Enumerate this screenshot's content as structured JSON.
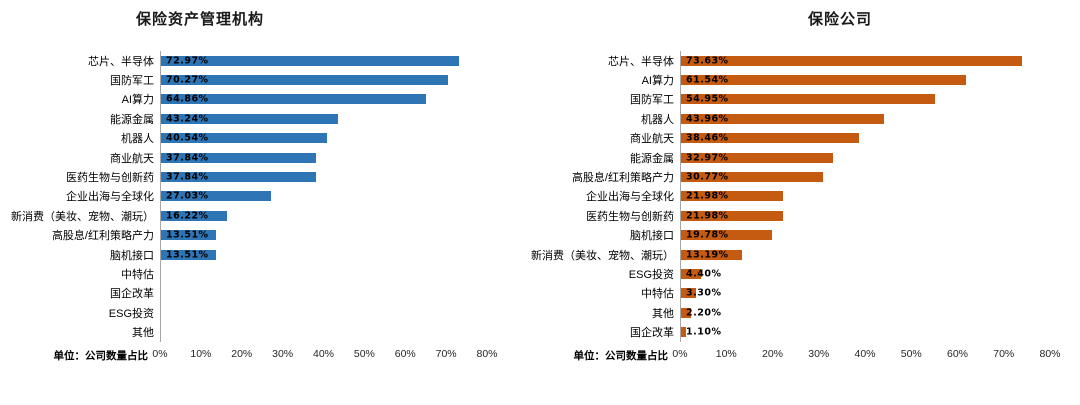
{
  "chart_data": [
    {
      "type": "bar",
      "orientation": "horizontal",
      "title": "保险资产管理机构",
      "unit_note": "单位：公司数量占比",
      "bar_color": "#2E75B6",
      "xlim": [
        0,
        80
      ],
      "x_tick_labels": [
        "0%",
        "10%",
        "20%",
        "30%",
        "40%",
        "50%",
        "60%",
        "70%",
        "80%"
      ],
      "grid": false,
      "legend": "none",
      "categories": [
        "芯片、半导体",
        "国防军工",
        "AI算力",
        "能源金属",
        "机器人",
        "商业航天",
        "医药生物与创新药",
        "企业出海与全球化",
        "新消费（美妆、宠物、潮玩）",
        "高股息/红利策略产力",
        "脑机接口",
        "中特估",
        "国企改革",
        "ESG投资",
        "其他"
      ],
      "values": [
        72.97,
        70.27,
        64.86,
        43.24,
        40.54,
        37.84,
        37.84,
        27.03,
        16.22,
        13.51,
        13.51,
        0,
        0,
        0,
        0
      ],
      "value_labels": [
        "72.97%",
        "70.27%",
        "64.86%",
        "43.24%",
        "40.54%",
        "37.84%",
        "37.84%",
        "27.03%",
        "16.22%",
        "13.51%",
        "13.51%",
        "",
        "",
        "",
        ""
      ]
    },
    {
      "type": "bar",
      "orientation": "horizontal",
      "title": "保险公司",
      "unit_note": "单位：公司数量占比",
      "bar_color": "#C55A11",
      "xlim": [
        0,
        80
      ],
      "x_tick_labels": [
        "0%",
        "10%",
        "20%",
        "30%",
        "40%",
        "50%",
        "60%",
        "70%",
        "80%"
      ],
      "grid": false,
      "legend": "none",
      "categories": [
        "芯片、半导体",
        "AI算力",
        "国防军工",
        "机器人",
        "商业航天",
        "能源金属",
        "高股息/红利策略产力",
        "企业出海与全球化",
        "医药生物与创新药",
        "脑机接口",
        "新消费（美妆、宠物、潮玩）",
        "ESG投资",
        "中特估",
        "其他",
        "国企改革"
      ],
      "values": [
        73.63,
        61.54,
        54.95,
        43.96,
        38.46,
        32.97,
        30.77,
        21.98,
        21.98,
        19.78,
        13.19,
        4.4,
        3.3,
        2.2,
        1.1
      ],
      "value_labels": [
        "73.63%",
        "61.54%",
        "54.95%",
        "43.96%",
        "38.46%",
        "32.97%",
        "30.77%",
        "21.98%",
        "21.98%",
        "19.78%",
        "13.19%",
        "4.40%",
        "3.30%",
        "2.20%",
        "1.10%"
      ]
    }
  ]
}
